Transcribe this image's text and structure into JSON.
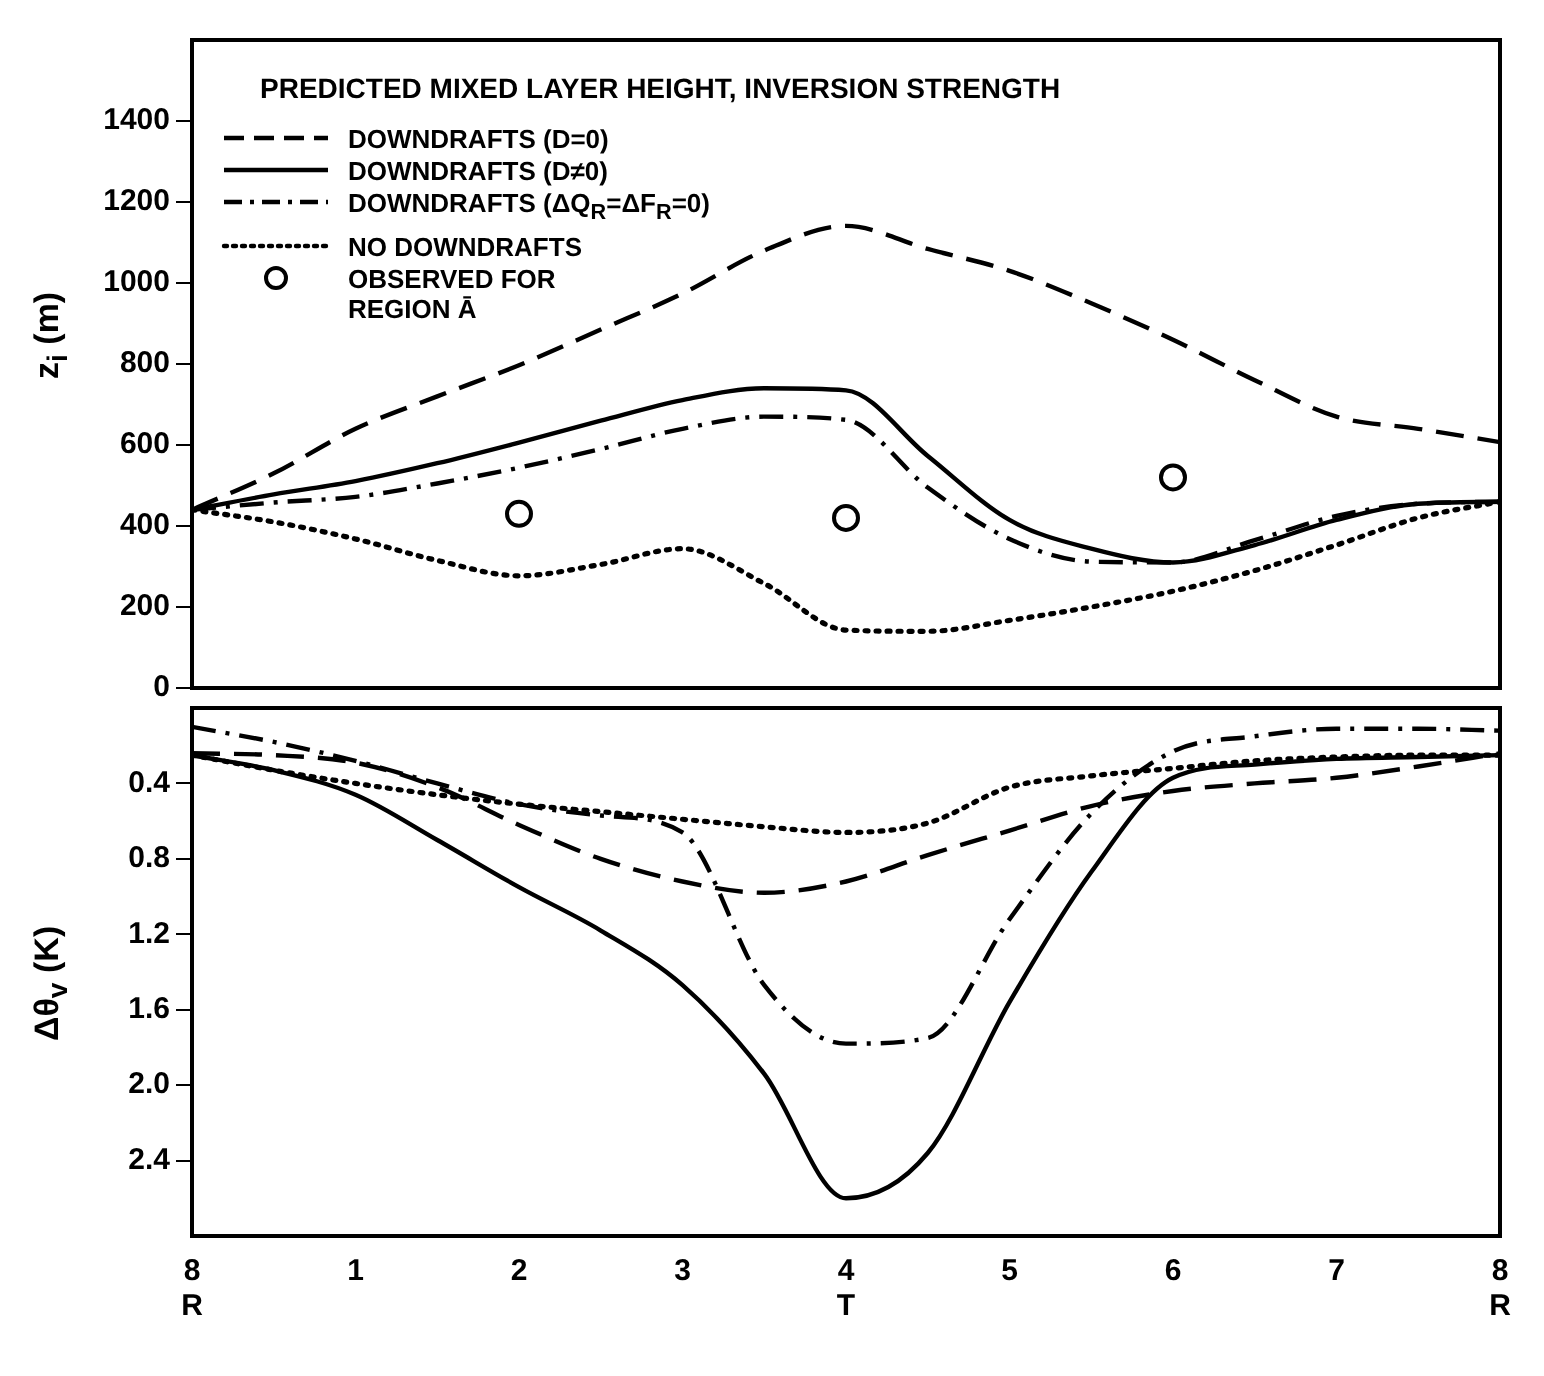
{
  "chart_data": [
    {
      "type": "line",
      "title": "PREDICTED MIXED LAYER HEIGHT, INVERSION STRENGTH",
      "ylabel": "z$_{i}$ (m)",
      "categories": [
        "8",
        null,
        "1",
        null,
        "2",
        null,
        "3",
        null,
        "4",
        null,
        "5",
        null,
        "6",
        null,
        "7",
        null,
        "8"
      ],
      "ylim": [
        0,
        1600
      ],
      "yticks": [
        0,
        200,
        400,
        600,
        800,
        1000,
        1200,
        1400
      ],
      "tick_labels": "y",
      "legend": "top left",
      "series": [
        {
          "name": "DOWNDRAFTS (D=0)",
          "color": "#000000",
          "line_style": "dashed",
          "values": [
            440,
            530,
            640,
            720,
            797,
            885,
            974,
            1080,
            1141,
            1084,
            1030,
            950,
            860,
            760,
            670,
            640,
            607
          ]
        },
        {
          "name": "DOWNDRAFTS (D≠0)",
          "color": "#000000",
          "line_style": "solid",
          "values": [
            440,
            478,
            511,
            555,
            606,
            660,
            711,
            740,
            735,
            573,
            415,
            344,
            310,
            353,
            415,
            455,
            460
          ]
        },
        {
          "name": "DOWNDRAFTS (ΔQ$_{R}$=ΔF$_{R}$=0)",
          "color": "#000000",
          "line_style": "dashdot",
          "values": [
            440,
            458,
            472,
            505,
            544,
            590,
            640,
            670,
            662,
            495,
            368,
            312,
            310,
            365,
            425,
            455,
            460
          ]
        },
        {
          "name": "NO DOWNDRAFTS",
          "color": "#000000",
          "line_style": "dotted",
          "values": [
            440,
            410,
            368,
            315,
            277,
            305,
            344,
            258,
            143,
            140,
            167,
            200,
            239,
            290,
            353,
            420,
            460
          ]
        },
        {
          "name": "OBSERVED FOR REGION Ā",
          "color": "#000000",
          "type": "scatter",
          "marker": "circle",
          "x": [
            "2",
            "4",
            "6"
          ],
          "values": [
            430,
            420,
            520
          ]
        }
      ]
    },
    {
      "type": "line",
      "ylabel": "Δθ$_{v}$ (K)",
      "categories": [
        "8",
        null,
        "1",
        null,
        "2",
        null,
        "3",
        null,
        "4",
        null,
        "5",
        null,
        "6",
        null,
        "7",
        null,
        "8"
      ],
      "ylim": [
        2.8,
        0
      ],
      "yticks": [
        0.4,
        0.8,
        1.2,
        1.6,
        {
          "value": 2,
          "label": "2.0"
        },
        2.4
      ],
      "annotations": [
        "R",
        "T",
        "R"
      ],
      "series": [
        {
          "color": "#000000",
          "line_style": "dashed",
          "values": [
            0.24,
            0.25,
            0.29,
            0.42,
            0.62,
            0.8,
            0.92,
            0.98,
            0.92,
            0.78,
            0.65,
            0.52,
            0.44,
            0.4,
            0.37,
            0.31,
            0.24
          ]
        },
        {
          "color": "#000000",
          "line_style": "solid",
          "values": [
            0.25,
            0.33,
            0.46,
            0.7,
            0.95,
            1.18,
            1.47,
            1.94,
            2.6,
            2.36,
            1.56,
            0.87,
            0.37,
            0.3,
            0.27,
            0.26,
            0.25
          ]
        },
        {
          "color": "#000000",
          "line_style": "dashdot",
          "values": [
            0.1,
            0.18,
            0.28,
            0.4,
            0.51,
            0.57,
            0.66,
            1.47,
            1.78,
            1.75,
            1.12,
            0.56,
            0.23,
            0.15,
            0.11,
            0.11,
            0.12
          ]
        },
        {
          "color": "#000000",
          "line_style": "dotted",
          "values": [
            0.25,
            0.33,
            0.4,
            0.46,
            0.51,
            0.55,
            0.59,
            0.63,
            0.66,
            0.61,
            0.42,
            0.36,
            0.32,
            0.28,
            0.26,
            0.25,
            0.25
          ]
        }
      ]
    }
  ]
}
